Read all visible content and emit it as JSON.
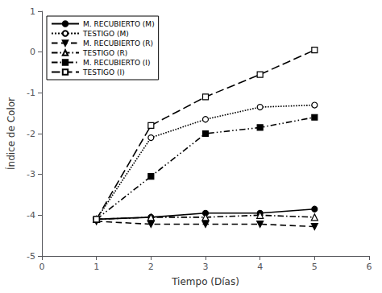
{
  "chart_data": {
    "type": "line",
    "xlabel": "Tiempo (Días)",
    "ylabel": "Índice de Color",
    "x": [
      1,
      2,
      3,
      4,
      5
    ],
    "series": [
      {
        "name": "M. RECUBIERTO (M)",
        "color": "black",
        "values": [
          -4.1,
          -4.05,
          -3.95,
          -3.95,
          -3.85
        ],
        "marker": "circle",
        "line_style": "solid"
      },
      {
        "name": "TESTIGO (M)",
        "color": "black",
        "values": [
          -4.1,
          -2.1,
          -1.65,
          -1.35,
          -1.3
        ],
        "marker": "open-circle",
        "line_style": "dotted"
      },
      {
        "name": "M. RECUBIERTO (R)",
        "color": "black",
        "values": [
          -4.15,
          -4.22,
          -4.22,
          -4.22,
          -4.28
        ],
        "marker": "triangle-down",
        "line_style": "dashed"
      },
      {
        "name": "TESTIGO (R)",
        "color": "black",
        "values": [
          -4.1,
          -4.05,
          -4.05,
          -4.0,
          -4.05
        ],
        "marker": "open-triangle-up",
        "line_style": "dashdotdot"
      },
      {
        "name": "M. RECUBIERTO (I)",
        "color": "black",
        "values": [
          -4.1,
          -3.05,
          -2.0,
          -1.85,
          -1.6
        ],
        "marker": "square",
        "line_style": "dashdot"
      },
      {
        "name": "TESTIGO (I)",
        "color": "black",
        "values": [
          -4.1,
          -1.8,
          -1.1,
          -0.55,
          0.05
        ],
        "marker": "open-square",
        "line_style": "longdash"
      }
    ],
    "xlim": [
      0,
      6
    ],
    "ylim": [
      -5,
      1
    ],
    "xticks": [
      0,
      1,
      2,
      3,
      4,
      5,
      6
    ],
    "yticks": [
      -5,
      -4,
      -3,
      -2,
      -1,
      0,
      1
    ],
    "grid": false,
    "legend": "upper left"
  }
}
